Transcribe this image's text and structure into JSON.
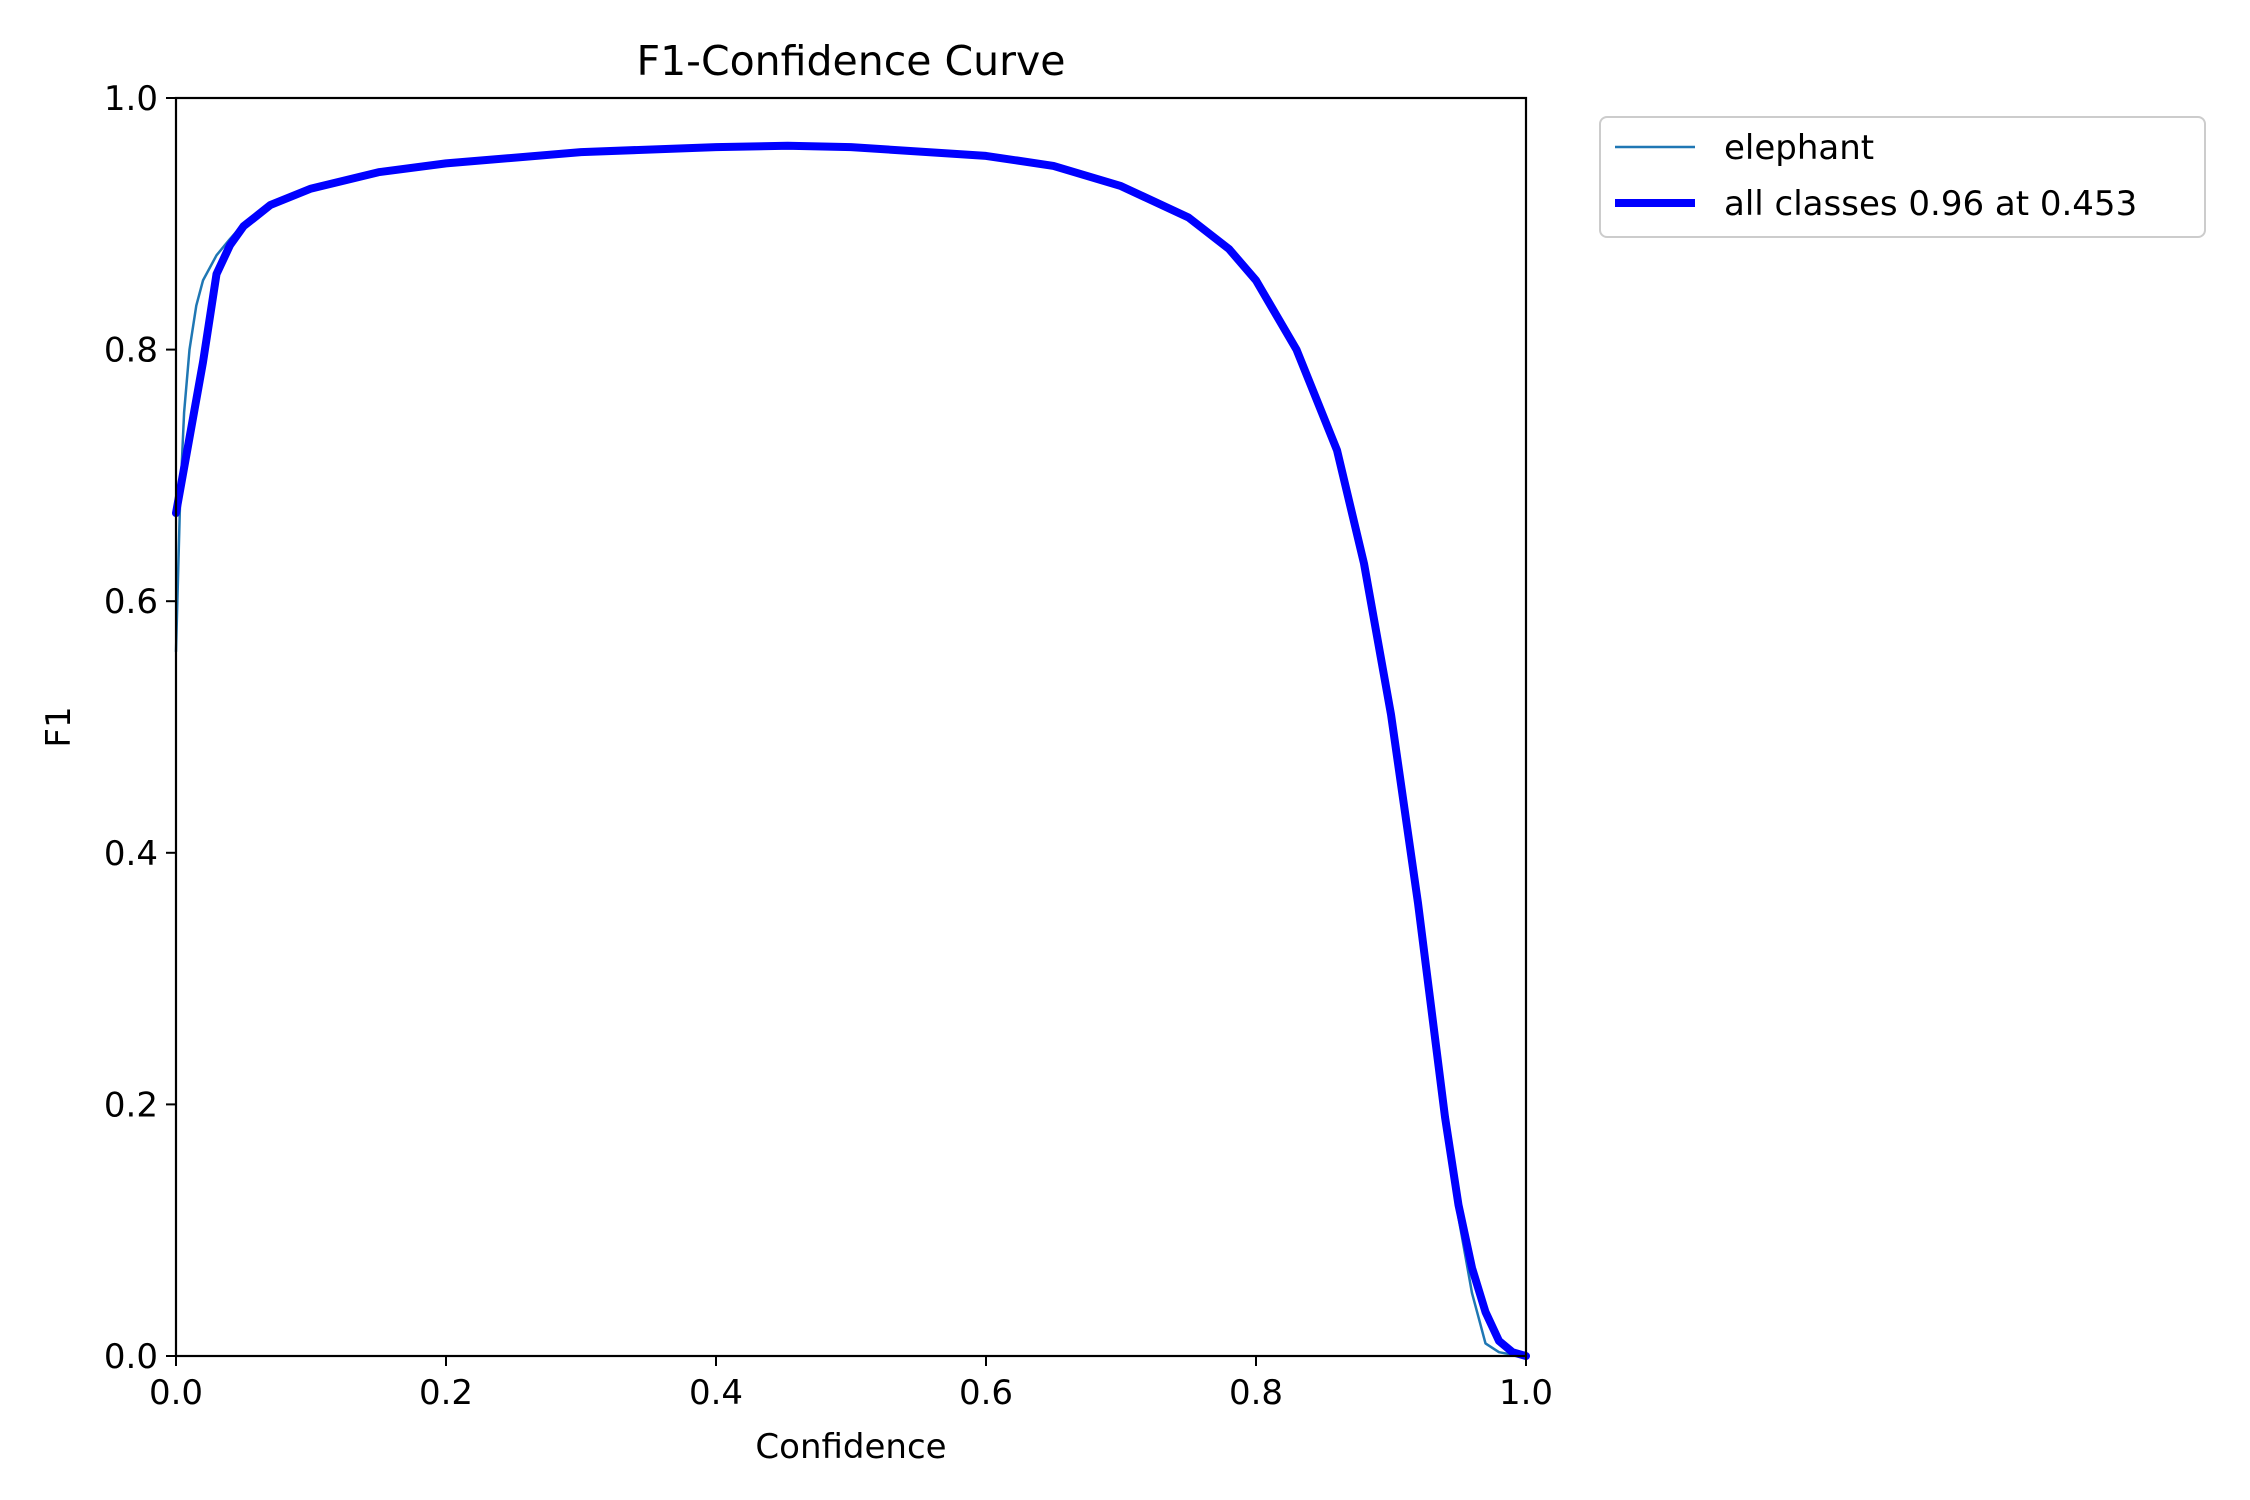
{
  "chart_data": {
    "type": "line",
    "title": "F1-Confidence Curve",
    "xlabel": "Confidence",
    "ylabel": "F1",
    "xlim": [
      0,
      1
    ],
    "ylim": [
      0,
      1
    ],
    "xticks": [
      "0.0",
      "0.2",
      "0.4",
      "0.6",
      "0.8",
      "1.0"
    ],
    "yticks": [
      "0.0",
      "0.2",
      "0.4",
      "0.6",
      "0.8",
      "1.0"
    ],
    "grid": false,
    "legend_position": "outside-top-right",
    "series": [
      {
        "name": "elephant",
        "color": "#1f77b4",
        "x": [
          0.0,
          0.003,
          0.006,
          0.01,
          0.015,
          0.02,
          0.03,
          0.04,
          0.05,
          0.07,
          0.1,
          0.15,
          0.2,
          0.3,
          0.4,
          0.453,
          0.5,
          0.6,
          0.65,
          0.7,
          0.75,
          0.78,
          0.8,
          0.83,
          0.86,
          0.88,
          0.9,
          0.92,
          0.94,
          0.95,
          0.96,
          0.965,
          0.97,
          0.98,
          0.99,
          1.0
        ],
        "y": [
          0.56,
          0.68,
          0.75,
          0.8,
          0.835,
          0.855,
          0.875,
          0.888,
          0.9,
          0.915,
          0.928,
          0.941,
          0.948,
          0.957,
          0.961,
          0.962,
          0.961,
          0.954,
          0.946,
          0.93,
          0.905,
          0.88,
          0.855,
          0.8,
          0.72,
          0.63,
          0.51,
          0.36,
          0.19,
          0.11,
          0.05,
          0.03,
          0.01,
          0.003,
          0.001,
          0.0
        ]
      },
      {
        "name": "all classes 0.96 at 0.453",
        "color": "#0000ff",
        "x": [
          0.0,
          0.01,
          0.02,
          0.03,
          0.04,
          0.05,
          0.07,
          0.1,
          0.15,
          0.2,
          0.3,
          0.4,
          0.453,
          0.5,
          0.6,
          0.65,
          0.7,
          0.75,
          0.78,
          0.8,
          0.83,
          0.86,
          0.88,
          0.9,
          0.92,
          0.94,
          0.95,
          0.96,
          0.97,
          0.98,
          0.99,
          1.0
        ],
        "y": [
          0.67,
          0.73,
          0.79,
          0.86,
          0.883,
          0.898,
          0.915,
          0.928,
          0.941,
          0.948,
          0.957,
          0.961,
          0.962,
          0.961,
          0.954,
          0.946,
          0.93,
          0.905,
          0.88,
          0.855,
          0.8,
          0.72,
          0.63,
          0.51,
          0.36,
          0.19,
          0.12,
          0.07,
          0.035,
          0.012,
          0.003,
          0.0
        ]
      }
    ]
  }
}
